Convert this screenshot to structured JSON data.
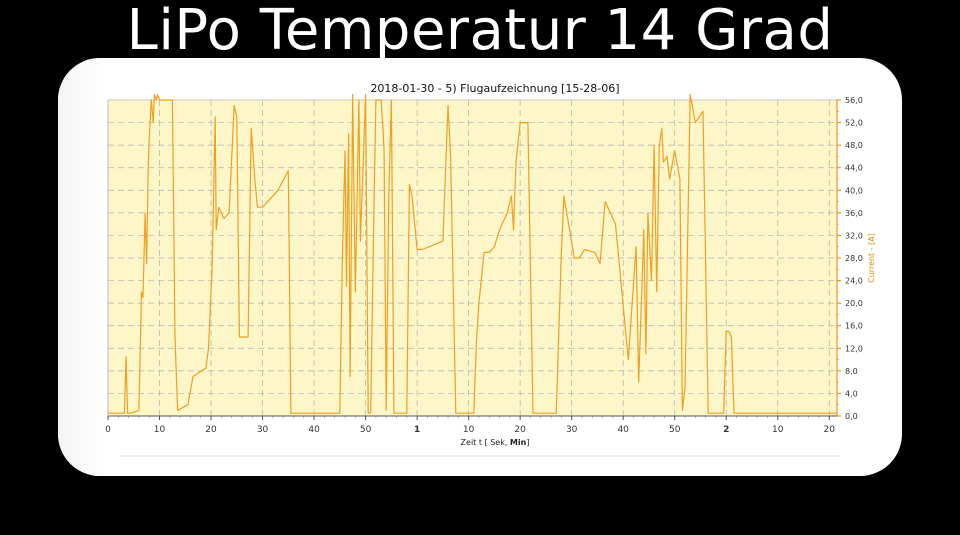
{
  "headline": "LiPo Temperatur 14 Grad",
  "chart_data": {
    "type": "line",
    "title": "2018-01-30 - 5) Flugaufzeichnung [15-28-06]",
    "xlabel_prefix": "Zeit  t  [ Sek, ",
    "xlabel_bold": "Min",
    "xlabel_suffix": "]",
    "ylabel": "Current - [A]",
    "ylim": [
      0,
      56
    ],
    "yticks": [
      "0,0",
      "4,0",
      "8,0",
      "12,0",
      "16,0",
      "20,0",
      "24,0",
      "28,0",
      "32,0",
      "36,0",
      "40,0",
      "44,0",
      "48,0",
      "52,0",
      "56,0"
    ],
    "xlim_seconds": [
      0,
      141.5
    ],
    "xticks": [
      {
        "t": 0,
        "label": "0",
        "bold": false
      },
      {
        "t": 10,
        "label": "10",
        "bold": false
      },
      {
        "t": 20,
        "label": "20",
        "bold": false
      },
      {
        "t": 30,
        "label": "30",
        "bold": false
      },
      {
        "t": 40,
        "label": "40",
        "bold": false
      },
      {
        "t": 50,
        "label": "50",
        "bold": false
      },
      {
        "t": 60,
        "label": "1",
        "bold": true
      },
      {
        "t": 70,
        "label": "10",
        "bold": false
      },
      {
        "t": 80,
        "label": "20",
        "bold": false
      },
      {
        "t": 90,
        "label": "30",
        "bold": false
      },
      {
        "t": 100,
        "label": "40",
        "bold": false
      },
      {
        "t": 110,
        "label": "50",
        "bold": false
      },
      {
        "t": 120,
        "label": "2",
        "bold": true
      },
      {
        "t": 130,
        "label": "10",
        "bold": false
      },
      {
        "t": 140,
        "label": "20",
        "bold": false
      }
    ],
    "grid": true,
    "colors": {
      "line": "#f0a020",
      "background": "#fcf6c8",
      "grid": "#aaaaaa",
      "axis": "#e08a00"
    },
    "series": [
      {
        "x": [
          0,
          3.2,
          3.5,
          3.8,
          4.5,
          6.0,
          6.5,
          6.8,
          7.2,
          7.5,
          7.8,
          8.0,
          8.4,
          8.8,
          9.0,
          9.4,
          9.6,
          10.0,
          12.5,
          13.0,
          13.5,
          15.5,
          16.5,
          19.0,
          19.5,
          20.2,
          20.8,
          21.0,
          21.5,
          22.5,
          23.5,
          24.5,
          25.0,
          25.5,
          26.5,
          27.2,
          27.8,
          28.5,
          29.0,
          30.0,
          33.0,
          35.0,
          35.5,
          36.5,
          38.0,
          39.5,
          42.5,
          45.0,
          45.5,
          46.0,
          46.3,
          46.7,
          47.0,
          47.5,
          48.0,
          48.3,
          48.7,
          49.0,
          50.0,
          50.5,
          51.0,
          51.5,
          52.0,
          53.0,
          53.3,
          53.6,
          54.0,
          54.5,
          55.0,
          55.5,
          56.5,
          57.0,
          57.5,
          58.0,
          58.5,
          59.0,
          60.0,
          61.0,
          65.0,
          66.0,
          66.5,
          67.5,
          68.5,
          69.0,
          71.0,
          71.5,
          72.0,
          73.0,
          74.0,
          75.0,
          76.0,
          77.5,
          78.3,
          78.7,
          79.2,
          80.0,
          80.5,
          81.5,
          82.5,
          83.5,
          87.0,
          88.0,
          88.5,
          90.5,
          91.5,
          92.5,
          94.5,
          95.5,
          96.5,
          98.5,
          101.0,
          102.5,
          103.0,
          104.0,
          104.4,
          104.8,
          105.5,
          106.0,
          106.5,
          107.0,
          107.5,
          107.8,
          108.5,
          109.0,
          110.0,
          111.0,
          111.5,
          112.0,
          113.0,
          114.0,
          115.5,
          116.5,
          117.5,
          118.5,
          119.5,
          120.0,
          120.5,
          121.0,
          121.5,
          122.0,
          122.5,
          123.0,
          125.0,
          126.0,
          126.5,
          128.0,
          128.5,
          129.5,
          130.5,
          132.0,
          141.5
        ],
        "y": [
          0.5,
          0.5,
          10.5,
          0.5,
          0.5,
          1,
          22,
          21,
          36,
          27,
          44,
          49,
          56,
          52,
          57,
          56,
          57,
          56,
          56,
          14,
          1,
          2,
          7,
          8.5,
          12,
          26,
          53,
          33,
          37,
          35,
          36,
          55,
          53,
          14,
          14,
          14,
          51,
          42,
          37,
          37,
          40,
          43.5,
          0.5,
          0.5,
          0.5,
          0.5,
          0.5,
          0.5,
          28,
          47,
          23,
          50,
          7,
          57,
          22,
          35,
          56,
          31,
          57,
          0.5,
          0.5,
          30,
          56,
          56,
          52,
          47,
          1,
          39,
          56,
          0.5,
          0.5,
          0.5,
          0.5,
          0.5,
          41,
          39,
          29.5,
          29.5,
          31,
          55,
          46,
          0.5,
          0.5,
          0.5,
          0.5,
          13,
          20,
          29,
          29,
          30,
          33,
          36,
          39,
          33,
          45,
          52,
          52,
          52,
          0.5,
          0.5,
          0.5,
          29,
          39,
          28,
          28,
          29.5,
          29,
          27,
          38,
          34,
          10,
          30,
          6,
          33,
          11,
          36,
          24,
          48,
          22,
          48,
          51,
          45,
          46,
          42,
          47,
          42,
          1,
          5,
          57,
          52,
          54,
          0.5,
          0.5,
          0.5,
          0.5,
          15,
          15,
          14,
          0.5,
          0.5,
          0.5,
          0.5,
          0.5,
          0.5,
          0.5,
          0.5,
          0.5,
          0.5,
          0.5,
          0.5,
          0.5
        ]
      }
    ]
  }
}
